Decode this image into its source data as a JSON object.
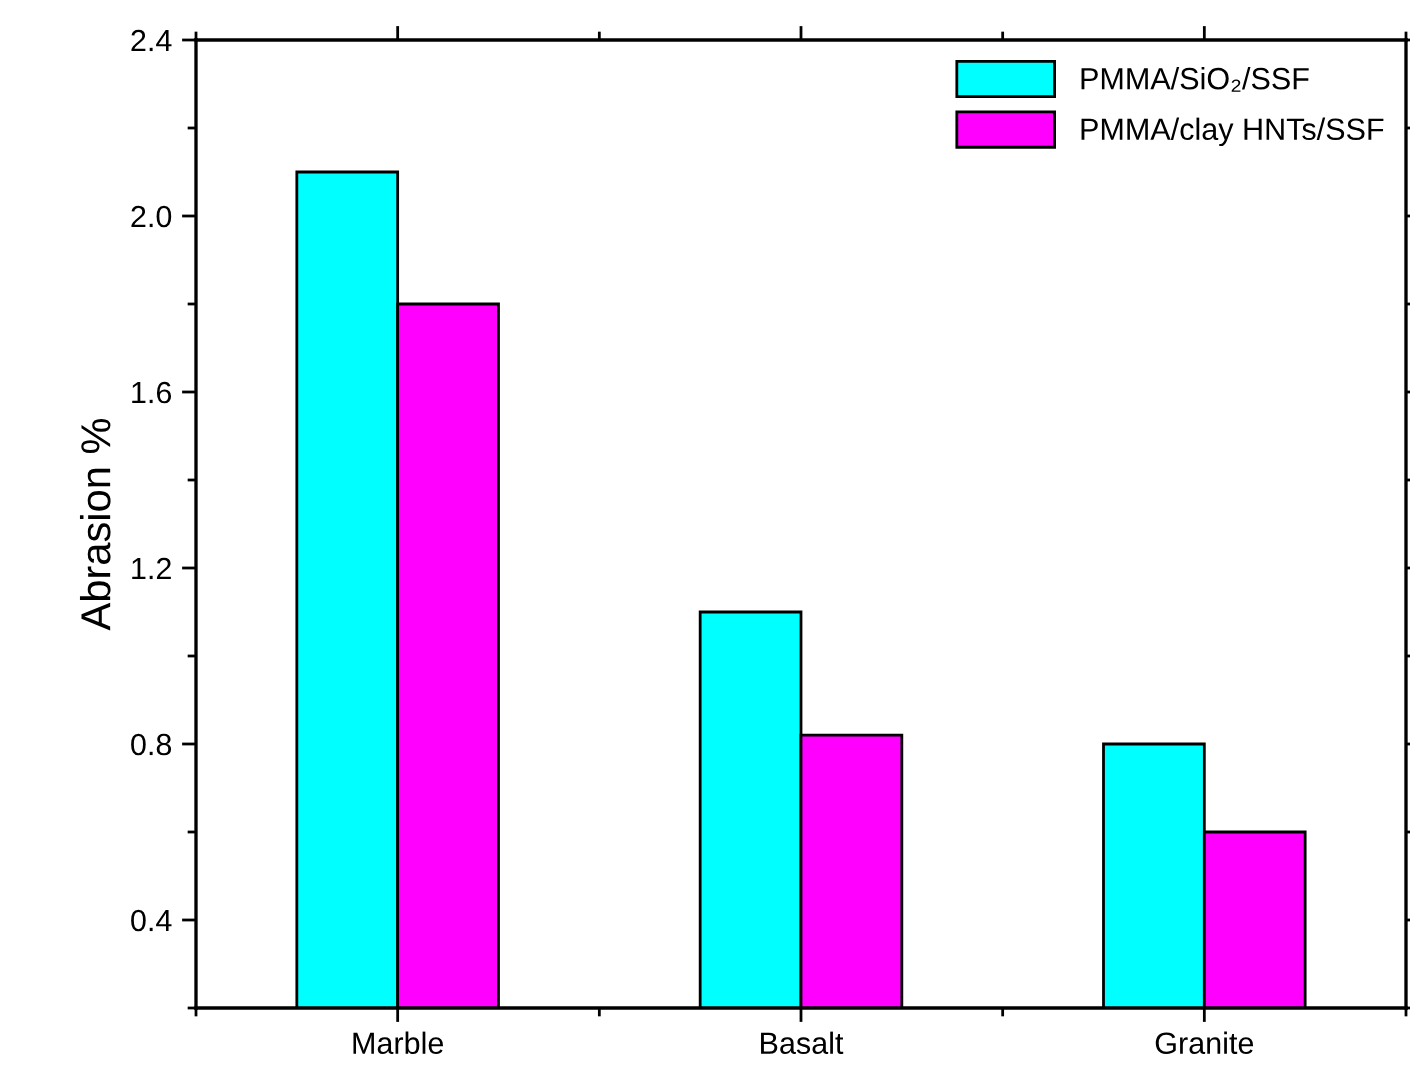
{
  "chart_data": {
    "type": "bar",
    "ylabel": "Abrasion %",
    "categories": [
      "Marble",
      "Basalt",
      "Granite"
    ],
    "series": [
      {
        "name": "PMMA/SiO₂/SSF",
        "color": "#00ffff",
        "values": [
          2.1,
          1.1,
          0.8
        ]
      },
      {
        "name": "PMMA/clay HNTs/SSF",
        "color": "#ff00ff",
        "values": [
          1.8,
          0.82,
          0.6
        ]
      }
    ],
    "ylim": [
      0.2,
      2.4
    ],
    "yticks": [
      {
        "value": 0.2,
        "label": null
      },
      0.4,
      {
        "value": 0.6,
        "label": null
      },
      0.8,
      {
        "value": 1.0,
        "label": null
      },
      1.2,
      {
        "value": 1.4,
        "label": null
      },
      1.6,
      {
        "value": 1.8,
        "label": null
      },
      {
        "value": 2.0,
        "label": "2.0"
      },
      {
        "value": 2.2,
        "label": null
      },
      2.4
    ],
    "grid": false,
    "legend": "top right"
  }
}
